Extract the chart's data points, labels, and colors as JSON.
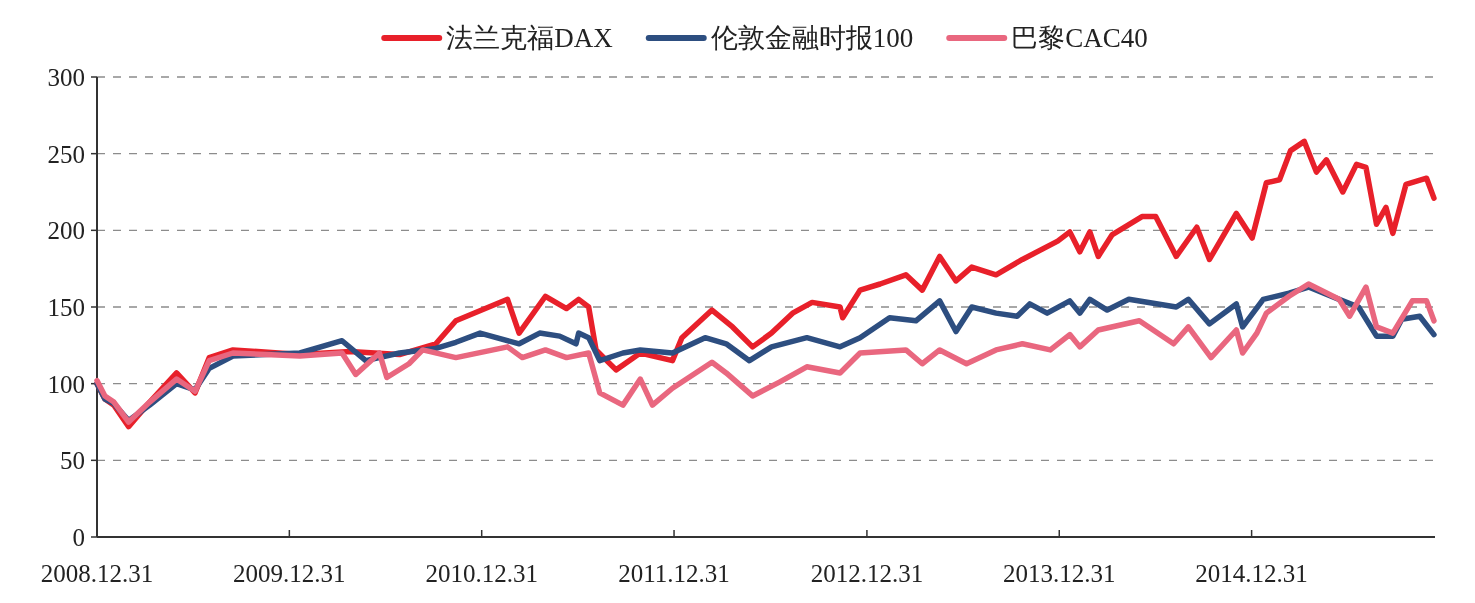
{
  "chart_data": {
    "type": "line",
    "legend": "top",
    "grid": "y",
    "line_style": "solid",
    "xlim": [
      "2008-12-31",
      "2015-12-14"
    ],
    "xticks": [
      {
        "value": "2008-12-31",
        "label": "2008.12.31"
      },
      {
        "value": "2009-12-31",
        "label": "2009.12.31"
      },
      {
        "value": "2010-12-31",
        "label": "2010.12.31"
      },
      {
        "value": "2011-12-31",
        "label": "2011.12.31"
      },
      {
        "value": "2012-12-31",
        "label": "2012.12.31"
      },
      {
        "value": "2013-12-31",
        "label": "2013.12.31"
      },
      {
        "value": "2014-12-31",
        "label": "2014.12.31"
      }
    ],
    "ylim": [
      0,
      300
    ],
    "yticks": [
      0,
      50,
      100,
      150,
      200,
      250,
      300
    ],
    "series": [
      {
        "name": "法兰克福DAX",
        "color": "#e8202a",
        "x": [
          "2008-12-31",
          "2009-01-15",
          "2009-02-01",
          "2009-03-01",
          "2009-04-10",
          "2009-05-31",
          "2009-07-05",
          "2009-08-01",
          "2009-09-15",
          "2010-01-20",
          "2010-04-25",
          "2010-07-28",
          "2010-10-05",
          "2010-11-12",
          "2011-02-18",
          "2011-03-12",
          "2011-05-01",
          "2011-06-10",
          "2011-07-03",
          "2011-07-22",
          "2011-08-05",
          "2011-09-12",
          "2011-10-28",
          "2011-12-28",
          "2012-01-15",
          "2012-03-12",
          "2012-04-20",
          "2012-05-28",
          "2012-07-03",
          "2012-08-12",
          "2012-09-18",
          "2012-11-10",
          "2012-11-15",
          "2012-12-18",
          "2013-01-25",
          "2013-03-15",
          "2013-04-15",
          "2013-05-18",
          "2013-06-18",
          "2013-07-18",
          "2013-09-02",
          "2013-10-22",
          "2013-12-28",
          "2014-01-20",
          "2014-02-08",
          "2014-02-27",
          "2014-03-15",
          "2014-04-10",
          "2014-06-06",
          "2014-07-02",
          "2014-08-10",
          "2014-09-18",
          "2014-10-12",
          "2014-12-02",
          "2015-01-01",
          "2015-01-28",
          "2015-02-22",
          "2015-03-15",
          "2015-04-10",
          "2015-05-03",
          "2015-05-22",
          "2015-06-22",
          "2015-07-18",
          "2015-08-05",
          "2015-08-25",
          "2015-09-12",
          "2015-09-25",
          "2015-10-20",
          "2015-11-28",
          "2015-12-12"
        ],
        "values": [
          100,
          90,
          86,
          72,
          88,
          107,
          94,
          117,
          122,
          119,
          121,
          119,
          126,
          141,
          155,
          133,
          157,
          149,
          155,
          150,
          122,
          109,
          120,
          115,
          130,
          148,
          137,
          124,
          133,
          146,
          153,
          150,
          143,
          161,
          165,
          171,
          161,
          183,
          167,
          176,
          171,
          181,
          193,
          199,
          186,
          199,
          183,
          197,
          209,
          209,
          183,
          202,
          181,
          211,
          195,
          231,
          233,
          252,
          258,
          238,
          246,
          225,
          243,
          241,
          204,
          215,
          198,
          230,
          234,
          221
        ]
      },
      {
        "name": "伦敦金融时报100",
        "color": "#2d4e80",
        "x": [
          "2008-12-31",
          "2009-01-15",
          "2009-02-01",
          "2009-03-01",
          "2009-04-10",
          "2009-05-31",
          "2009-07-05",
          "2009-08-01",
          "2009-09-15",
          "2010-01-20",
          "2010-04-10",
          "2010-05-25",
          "2010-07-28",
          "2010-10-05",
          "2010-11-12",
          "2010-12-28",
          "2011-03-12",
          "2011-04-20",
          "2011-05-28",
          "2011-06-28",
          "2011-07-03",
          "2011-07-22",
          "2011-08-12",
          "2011-09-25",
          "2011-10-28",
          "2011-12-28",
          "2012-02-28",
          "2012-04-08",
          "2012-05-22",
          "2012-07-03",
          "2012-09-08",
          "2012-11-10",
          "2012-12-18",
          "2013-02-12",
          "2013-04-03",
          "2013-05-18",
          "2013-06-18",
          "2013-07-18",
          "2013-09-02",
          "2013-10-12",
          "2013-11-05",
          "2013-12-08",
          "2014-01-20",
          "2014-02-08",
          "2014-02-27",
          "2014-04-01",
          "2014-05-12",
          "2014-08-10",
          "2014-09-02",
          "2014-10-12",
          "2014-12-02",
          "2014-12-14",
          "2015-01-22",
          "2015-03-12",
          "2015-04-18",
          "2015-06-15",
          "2015-07-22",
          "2015-08-25",
          "2015-09-25",
          "2015-10-12",
          "2015-11-15",
          "2015-12-12"
        ],
        "values": [
          100,
          90,
          87,
          76,
          86,
          100,
          96,
          110,
          118,
          120,
          128,
          115,
          120,
          123,
          127,
          133,
          126,
          133,
          131,
          126,
          133,
          130,
          115,
          120,
          122,
          120,
          130,
          126,
          115,
          124,
          130,
          124,
          130,
          143,
          141,
          154,
          134,
          150,
          146,
          144,
          152,
          146,
          154,
          146,
          155,
          148,
          155,
          150,
          155,
          139,
          152,
          137,
          155,
          159,
          163,
          155,
          150,
          131,
          131,
          142,
          144,
          132
        ]
      },
      {
        "name": "巴黎CAC40",
        "color": "#e9677f",
        "x": [
          "2008-12-31",
          "2009-01-15",
          "2009-02-01",
          "2009-03-01",
          "2009-04-10",
          "2009-05-31",
          "2009-07-05",
          "2009-08-01",
          "2009-09-15",
          "2010-01-20",
          "2010-04-10",
          "2010-05-06",
          "2010-06-20",
          "2010-07-04",
          "2010-08-15",
          "2010-09-10",
          "2010-11-12",
          "2011-02-18",
          "2011-03-18",
          "2011-05-01",
          "2011-06-10",
          "2011-07-22",
          "2011-08-12",
          "2011-09-25",
          "2011-10-28",
          "2011-11-20",
          "2011-12-28",
          "2012-03-12",
          "2012-04-08",
          "2012-05-28",
          "2012-07-18",
          "2012-09-08",
          "2012-11-10",
          "2012-12-18",
          "2013-03-15",
          "2013-04-15",
          "2013-05-18",
          "2013-07-08",
          "2013-09-02",
          "2013-10-22",
          "2013-12-14",
          "2014-01-20",
          "2014-02-08",
          "2014-03-15",
          "2014-06-01",
          "2014-08-05",
          "2014-09-02",
          "2014-10-15",
          "2014-12-02",
          "2014-12-14",
          "2015-01-10",
          "2015-01-28",
          "2015-03-12",
          "2015-04-18",
          "2015-06-15",
          "2015-07-05",
          "2015-08-05",
          "2015-08-25",
          "2015-09-25",
          "2015-11-01",
          "2015-11-28",
          "2015-12-12"
        ],
        "values": [
          102,
          92,
          88,
          75,
          88,
          103,
          95,
          115,
          120,
          118,
          120,
          106,
          120,
          104,
          113,
          122,
          117,
          124,
          117,
          122,
          117,
          120,
          94,
          86,
          103,
          86,
          97,
          114,
          107,
          92,
          101,
          111,
          107,
          120,
          122,
          113,
          122,
          113,
          122,
          126,
          122,
          132,
          124,
          135,
          141,
          126,
          137,
          117,
          135,
          120,
          133,
          146,
          157,
          165,
          155,
          144,
          163,
          137,
          133,
          154,
          154,
          141
        ]
      }
    ]
  }
}
